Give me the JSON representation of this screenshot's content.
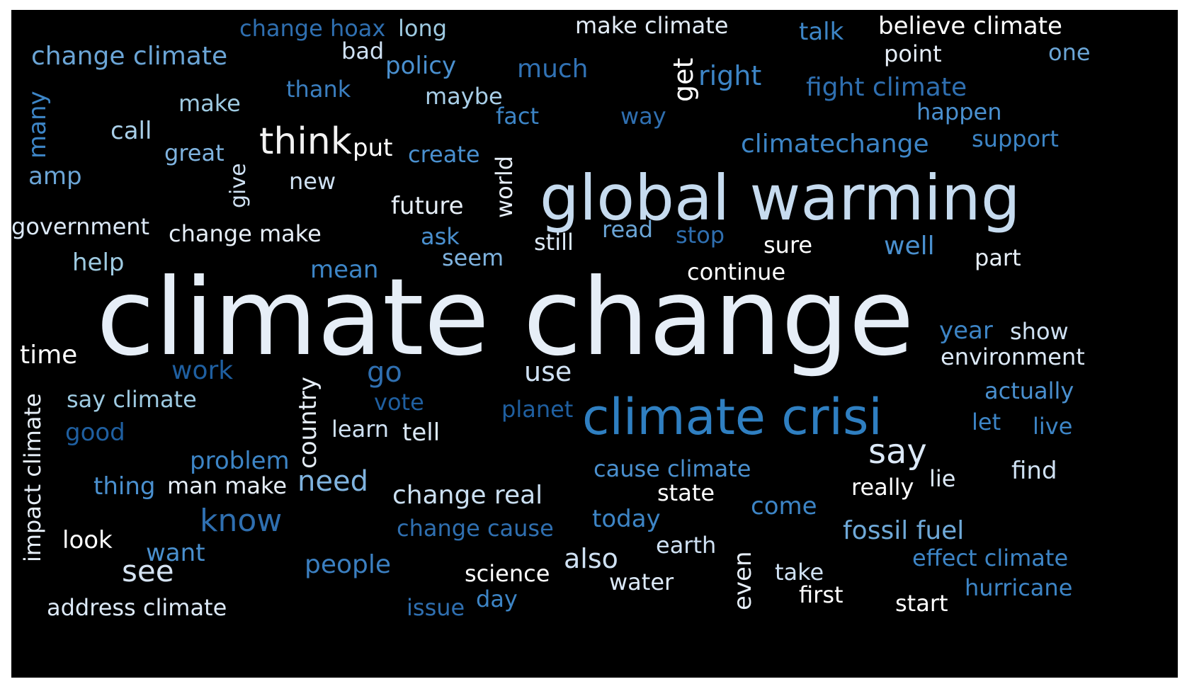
{
  "colors": {
    "background": "#000000",
    "palette": [
      "#ffffff",
      "#dce9f7",
      "#c0d9ef",
      "#9ecae1",
      "#6baed6",
      "#4292c6",
      "#2171b5",
      "#1f5fa0"
    ]
  },
  "words": [
    {
      "text": "climate change",
      "color": "#e6eef7",
      "vertical": false
    },
    {
      "text": "global warming",
      "color": "#c6dbef",
      "vertical": false
    },
    {
      "text": "climate crisi",
      "color": "#2f7fc1",
      "vertical": false
    },
    {
      "text": "think",
      "color": "#f2f2f2",
      "vertical": false
    },
    {
      "text": "say",
      "color": "#dce9f7",
      "vertical": false
    },
    {
      "text": "know",
      "color": "#2f6fb0",
      "vertical": false
    },
    {
      "text": "need",
      "color": "#7fb3df",
      "vertical": false
    },
    {
      "text": "go",
      "color": "#2f6fb0",
      "vertical": false
    },
    {
      "text": "see",
      "color": "#d5e3f2",
      "vertical": false
    },
    {
      "text": "change real",
      "color": "#cbe0f2",
      "vertical": false
    },
    {
      "text": "use",
      "color": "#cfe1f3",
      "vertical": false
    },
    {
      "text": "people",
      "color": "#3b7fc0",
      "vertical": false
    },
    {
      "text": "fossil fuel",
      "color": "#6fa9d8",
      "vertical": false
    },
    {
      "text": "also",
      "color": "#cfe1f3",
      "vertical": false
    },
    {
      "text": "climatechange",
      "color": "#3d85c6",
      "vertical": false
    },
    {
      "text": "fight climate",
      "color": "#2f6fb0",
      "vertical": false
    },
    {
      "text": "right",
      "color": "#3d85c6",
      "vertical": false
    },
    {
      "text": "get",
      "color": "#ffffff",
      "vertical": true
    },
    {
      "text": "much",
      "color": "#3172b4",
      "vertical": false
    },
    {
      "text": "change climate",
      "color": "#6ba5d6",
      "vertical": false
    },
    {
      "text": "change hoax",
      "color": "#2f6fb0",
      "vertical": false
    },
    {
      "text": "long",
      "color": "#9ecae1",
      "vertical": false
    },
    {
      "text": "make climate",
      "color": "#e3edf8",
      "vertical": false
    },
    {
      "text": "talk",
      "color": "#3d85c6",
      "vertical": false
    },
    {
      "text": "believe climate",
      "color": "#ffffff",
      "vertical": false
    },
    {
      "text": "bad",
      "color": "#cfe1f3",
      "vertical": false
    },
    {
      "text": "policy",
      "color": "#4a90cf",
      "vertical": false
    },
    {
      "text": "point",
      "color": "#e6eef7",
      "vertical": false
    },
    {
      "text": "one",
      "color": "#6ba5d6",
      "vertical": false
    },
    {
      "text": "many",
      "color": "#3d85c6",
      "vertical": true
    },
    {
      "text": "thank",
      "color": "#3b7fc0",
      "vertical": false
    },
    {
      "text": "make",
      "color": "#9ecae1",
      "vertical": false
    },
    {
      "text": "maybe",
      "color": "#a9cfe8",
      "vertical": false
    },
    {
      "text": "fact",
      "color": "#3d85c6",
      "vertical": false
    },
    {
      "text": "way",
      "color": "#2f6fb0",
      "vertical": false
    },
    {
      "text": "happen",
      "color": "#4a90cf",
      "vertical": false
    },
    {
      "text": "call",
      "color": "#a9cfe8",
      "vertical": false
    },
    {
      "text": "support",
      "color": "#3d85c6",
      "vertical": false
    },
    {
      "text": "great",
      "color": "#7fb3df",
      "vertical": false
    },
    {
      "text": "put",
      "color": "#ffffff",
      "vertical": false
    },
    {
      "text": "create",
      "color": "#4a90cf",
      "vertical": false
    },
    {
      "text": "world",
      "color": "#e6eef7",
      "vertical": true
    },
    {
      "text": "give",
      "color": "#cfe1f3",
      "vertical": true
    },
    {
      "text": "amp",
      "color": "#6ba5d6",
      "vertical": false
    },
    {
      "text": "new",
      "color": "#cfe1f3",
      "vertical": false
    },
    {
      "text": "future",
      "color": "#e6eef7",
      "vertical": false
    },
    {
      "text": "government",
      "color": "#dce9f7",
      "vertical": false
    },
    {
      "text": "change make",
      "color": "#e6eef7",
      "vertical": false
    },
    {
      "text": "ask",
      "color": "#4a90cf",
      "vertical": false
    },
    {
      "text": "still",
      "color": "#dce9f7",
      "vertical": false
    },
    {
      "text": "read",
      "color": "#6ba5d6",
      "vertical": false
    },
    {
      "text": "stop",
      "color": "#2f6fb0",
      "vertical": false
    },
    {
      "text": "sure",
      "color": "#ffffff",
      "vertical": false
    },
    {
      "text": "well",
      "color": "#4a90cf",
      "vertical": false
    },
    {
      "text": "part",
      "color": "#e6eef7",
      "vertical": false
    },
    {
      "text": "help",
      "color": "#9ecae1",
      "vertical": false
    },
    {
      "text": "seem",
      "color": "#7fb3df",
      "vertical": false
    },
    {
      "text": "mean",
      "color": "#3d85c6",
      "vertical": false
    },
    {
      "text": "continue",
      "color": "#ffffff",
      "vertical": false
    },
    {
      "text": "year",
      "color": "#3d85c6",
      "vertical": false
    },
    {
      "text": "show",
      "color": "#cfe1f3",
      "vertical": false
    },
    {
      "text": "time",
      "color": "#ffffff",
      "vertical": false
    },
    {
      "text": "environment",
      "color": "#dce9f7",
      "vertical": false
    },
    {
      "text": "work",
      "color": "#1f5fa0",
      "vertical": false
    },
    {
      "text": "actually",
      "color": "#4a90cf",
      "vertical": false
    },
    {
      "text": "say climate",
      "color": "#9ecae1",
      "vertical": false
    },
    {
      "text": "vote",
      "color": "#1f5fa0",
      "vertical": false
    },
    {
      "text": "planet",
      "color": "#1f5fa0",
      "vertical": false
    },
    {
      "text": "country",
      "color": "#e6eef7",
      "vertical": true
    },
    {
      "text": "impact climate",
      "color": "#e6eef7",
      "vertical": true
    },
    {
      "text": "let",
      "color": "#3d85c6",
      "vertical": false
    },
    {
      "text": "live",
      "color": "#3d85c6",
      "vertical": false
    },
    {
      "text": "good",
      "color": "#1f5fa0",
      "vertical": false
    },
    {
      "text": "learn",
      "color": "#cfe1f3",
      "vertical": false
    },
    {
      "text": "tell",
      "color": "#dce9f7",
      "vertical": false
    },
    {
      "text": "problem",
      "color": "#3d85c6",
      "vertical": false
    },
    {
      "text": "cause climate",
      "color": "#4a90cf",
      "vertical": false
    },
    {
      "text": "find",
      "color": "#cfe1f3",
      "vertical": false
    },
    {
      "text": "lie",
      "color": "#dce9f7",
      "vertical": false
    },
    {
      "text": "thing",
      "color": "#4a90cf",
      "vertical": false
    },
    {
      "text": "man make",
      "color": "#e6eef7",
      "vertical": false
    },
    {
      "text": "state",
      "color": "#ffffff",
      "vertical": false
    },
    {
      "text": "really",
      "color": "#ffffff",
      "vertical": false
    },
    {
      "text": "come",
      "color": "#3d85c6",
      "vertical": false
    },
    {
      "text": "change cause",
      "color": "#2f6fb0",
      "vertical": false
    },
    {
      "text": "today",
      "color": "#3d85c6",
      "vertical": false
    },
    {
      "text": "look",
      "color": "#ffffff",
      "vertical": false
    },
    {
      "text": "want",
      "color": "#4a90cf",
      "vertical": false
    },
    {
      "text": "earth",
      "color": "#cfe1f3",
      "vertical": false
    },
    {
      "text": "effect climate",
      "color": "#3d85c6",
      "vertical": false
    },
    {
      "text": "even",
      "color": "#e6eef7",
      "vertical": true
    },
    {
      "text": "take",
      "color": "#cfe1f3",
      "vertical": false
    },
    {
      "text": "science",
      "color": "#ffffff",
      "vertical": false
    },
    {
      "text": "water",
      "color": "#dce9f7",
      "vertical": false
    },
    {
      "text": "hurricane",
      "color": "#3d85c6",
      "vertical": false
    },
    {
      "text": "first",
      "color": "#ffffff",
      "vertical": false
    },
    {
      "text": "start",
      "color": "#ffffff",
      "vertical": false
    },
    {
      "text": "address climate",
      "color": "#dce9f7",
      "vertical": false
    },
    {
      "text": "issue",
      "color": "#2f6fb0",
      "vertical": false
    },
    {
      "text": "day",
      "color": "#3d85c6",
      "vertical": false
    }
  ]
}
